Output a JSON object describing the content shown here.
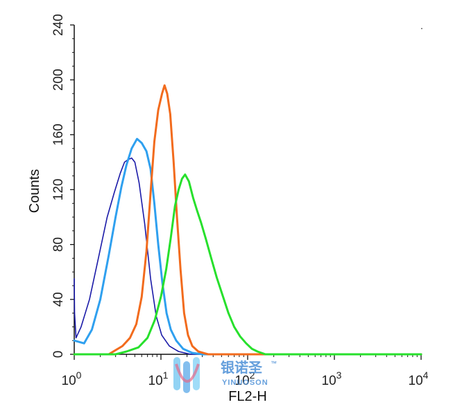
{
  "chart_data": {
    "type": "line",
    "title": "",
    "xlabel": "FL2-H",
    "ylabel": "Counts",
    "x_scale": "log",
    "xlim": [
      1,
      10000
    ],
    "ylim": [
      0,
      240
    ],
    "x_ticks": [
      {
        "value": 1,
        "base": "10",
        "exp": "0"
      },
      {
        "value": 10,
        "base": "10",
        "exp": "1"
      },
      {
        "value": 100,
        "base": "10",
        "exp": "2"
      },
      {
        "value": 1000,
        "base": "10",
        "exp": "3"
      },
      {
        "value": 10000,
        "base": "10",
        "exp": "4"
      }
    ],
    "y_ticks": [
      "0",
      "40",
      "80",
      "120",
      "160",
      "200",
      "240"
    ],
    "grid": false,
    "legend": "none",
    "series": [
      {
        "color": "#1a1aa8",
        "points": [
          [
            1.0,
            55
          ],
          [
            1.01,
            30
          ],
          [
            1.05,
            12
          ],
          [
            1.2,
            20
          ],
          [
            1.5,
            40
          ],
          [
            1.9,
            70
          ],
          [
            2.4,
            100
          ],
          [
            2.9,
            118
          ],
          [
            3.4,
            132
          ],
          [
            3.8,
            140
          ],
          [
            4.2,
            142
          ],
          [
            4.6,
            143
          ],
          [
            5.0,
            140
          ],
          [
            5.6,
            125
          ],
          [
            6.5,
            95
          ],
          [
            7.6,
            55
          ],
          [
            8.8,
            28
          ],
          [
            10.2,
            14
          ],
          [
            12.5,
            6
          ],
          [
            16,
            2
          ],
          [
            22,
            0
          ],
          [
            100,
            0
          ],
          [
            10000,
            0
          ]
        ]
      },
      {
        "color": "#2fa0ef",
        "points": [
          [
            1.0,
            10
          ],
          [
            1.3,
            8
          ],
          [
            1.6,
            18
          ],
          [
            2.0,
            40
          ],
          [
            2.5,
            72
          ],
          [
            3.0,
            100
          ],
          [
            3.5,
            122
          ],
          [
            4.0,
            138
          ],
          [
            4.6,
            150
          ],
          [
            5.3,
            157
          ],
          [
            6.0,
            154
          ],
          [
            6.8,
            148
          ],
          [
            7.6,
            135
          ],
          [
            8.4,
            110
          ],
          [
            9.3,
            80
          ],
          [
            10.4,
            52
          ],
          [
            11.6,
            30
          ],
          [
            13.0,
            18
          ],
          [
            15.0,
            10
          ],
          [
            18,
            4
          ],
          [
            23,
            1
          ],
          [
            30,
            0
          ],
          [
            100,
            0
          ],
          [
            10000,
            0
          ]
        ]
      },
      {
        "color": "#f26b1d",
        "points": [
          [
            1.0,
            0
          ],
          [
            2.5,
            0
          ],
          [
            3.0,
            3
          ],
          [
            3.6,
            6
          ],
          [
            4.4,
            12
          ],
          [
            5.2,
            22
          ],
          [
            6.0,
            42
          ],
          [
            6.8,
            75
          ],
          [
            7.6,
            118
          ],
          [
            8.4,
            155
          ],
          [
            9.3,
            178
          ],
          [
            10.3,
            190
          ],
          [
            11.0,
            196
          ],
          [
            11.8,
            190
          ],
          [
            12.8,
            175
          ],
          [
            14.0,
            140
          ],
          [
            15.3,
            100
          ],
          [
            16.8,
            62
          ],
          [
            18.5,
            30
          ],
          [
            20.5,
            14
          ],
          [
            23,
            6
          ],
          [
            27,
            2
          ],
          [
            35,
            0
          ],
          [
            100,
            0
          ],
          [
            10000,
            0
          ]
        ]
      },
      {
        "color": "#27e02c",
        "points": [
          [
            1.0,
            0
          ],
          [
            3.0,
            0
          ],
          [
            4.0,
            2
          ],
          [
            5.5,
            5
          ],
          [
            7.0,
            12
          ],
          [
            8.5,
            25
          ],
          [
            10.0,
            42
          ],
          [
            11.5,
            62
          ],
          [
            13.0,
            85
          ],
          [
            14.5,
            108
          ],
          [
            16.0,
            120
          ],
          [
            17.5,
            128
          ],
          [
            19.0,
            131
          ],
          [
            21.0,
            126
          ],
          [
            23.5,
            114
          ],
          [
            26.0,
            105
          ],
          [
            29.0,
            96
          ],
          [
            33.0,
            84
          ],
          [
            38.0,
            70
          ],
          [
            44.0,
            56
          ],
          [
            52.0,
            42
          ],
          [
            60.0,
            30
          ],
          [
            70.0,
            20
          ],
          [
            82.0,
            13
          ],
          [
            96.0,
            8
          ],
          [
            112.0,
            4
          ],
          [
            130.0,
            2
          ],
          [
            160.0,
            0
          ],
          [
            10000,
            0
          ]
        ]
      }
    ]
  },
  "watermark": {
    "text_cn": "银诺圣",
    "text_en": "YINUOSON",
    "tm": "™"
  },
  "corner_mark": "."
}
